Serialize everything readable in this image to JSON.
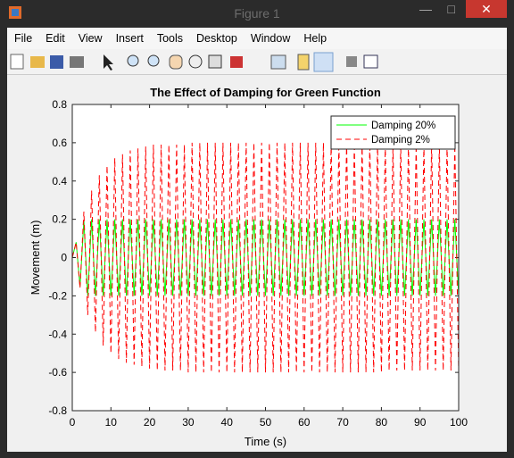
{
  "window": {
    "title": "Figure 1",
    "menu": [
      "File",
      "Edit",
      "View",
      "Insert",
      "Tools",
      "Desktop",
      "Window",
      "Help"
    ]
  },
  "chart_data": {
    "type": "line",
    "title": "The Effect of Damping for Green Function",
    "xlabel": "Time (s)",
    "ylabel": "Movement (m)",
    "xlim": [
      0,
      100
    ],
    "ylim": [
      -0.8,
      0.8
    ],
    "xticks": [
      0,
      10,
      20,
      30,
      40,
      50,
      60,
      70,
      80,
      90,
      100
    ],
    "yticks": [
      -0.8,
      -0.6,
      -0.4,
      -0.2,
      0,
      0.2,
      0.4,
      0.6,
      0.8
    ],
    "legend": "northeast",
    "x": [
      0,
      1,
      2,
      3,
      4,
      5,
      6,
      7,
      8,
      9,
      10,
      11,
      12,
      13,
      14,
      15,
      16,
      17,
      18,
      19,
      20,
      21,
      22,
      23,
      24,
      25,
      26,
      27,
      28,
      29,
      30,
      31,
      32,
      33,
      34,
      35,
      36,
      37,
      38,
      39,
      40,
      41,
      42,
      43,
      44,
      45,
      46,
      47,
      48,
      49,
      50,
      51,
      52,
      53,
      54,
      55,
      56,
      57,
      58,
      59,
      60,
      61,
      62,
      63,
      64,
      65,
      66,
      67,
      68,
      69,
      70,
      71,
      72,
      73,
      74,
      75,
      76,
      77,
      78,
      79,
      80,
      81,
      82,
      83,
      84,
      85,
      86,
      87,
      88,
      89,
      90,
      91,
      92,
      93,
      94,
      95,
      96,
      97,
      98,
      99,
      100
    ],
    "series": [
      {
        "name": "Damping 20%",
        "color": "#00ff00",
        "dash": false,
        "values": [
          0,
          0.08,
          -0.15,
          0.19,
          -0.2,
          0.2,
          -0.2,
          0.2,
          -0.2,
          0.2,
          -0.2,
          0.2,
          -0.2,
          0.2,
          -0.2,
          0.2,
          -0.2,
          0.2,
          -0.2,
          0.2,
          -0.2,
          0.2,
          -0.2,
          0.2,
          -0.2,
          0.2,
          -0.2,
          0.2,
          -0.2,
          0.2,
          -0.2,
          0.2,
          -0.2,
          0.2,
          -0.2,
          0.2,
          -0.2,
          0.2,
          -0.2,
          0.2,
          -0.2,
          0.2,
          -0.2,
          0.2,
          -0.2,
          0.2,
          -0.2,
          0.2,
          -0.2,
          0.2,
          -0.2,
          0.2,
          -0.2,
          0.2,
          -0.2,
          0.2,
          -0.2,
          0.2,
          -0.2,
          0.2,
          -0.2,
          0.2,
          -0.2,
          0.2,
          -0.2,
          0.2,
          -0.2,
          0.2,
          -0.2,
          0.2,
          -0.2,
          0.2,
          -0.2,
          0.2,
          -0.2,
          0.2,
          -0.2,
          0.2,
          -0.2,
          0.2,
          -0.2,
          0.2,
          -0.2,
          0.2,
          -0.2,
          0.2,
          -0.2,
          0.2,
          -0.2,
          0.2,
          -0.2,
          0.2,
          -0.2,
          0.2,
          -0.2,
          0.2,
          -0.2,
          0.2,
          -0.2,
          0.2,
          -0.2
        ]
      },
      {
        "name": "Damping 2%",
        "color": "#ff0000",
        "dash": true,
        "values": [
          0,
          0.08,
          -0.16,
          0.24,
          -0.3,
          0.35,
          -0.39,
          0.43,
          -0.46,
          0.48,
          -0.5,
          0.52,
          -0.53,
          0.54,
          -0.55,
          0.56,
          -0.56,
          0.57,
          -0.57,
          0.58,
          -0.58,
          0.59,
          -0.59,
          0.59,
          -0.59,
          0.59,
          -0.59,
          0.59,
          -0.59,
          0.59,
          -0.6,
          0.6,
          -0.6,
          0.6,
          -0.6,
          0.6,
          -0.6,
          0.6,
          -0.6,
          0.6,
          -0.6,
          0.6,
          -0.6,
          0.6,
          -0.6,
          0.6,
          -0.6,
          0.6,
          -0.6,
          0.6,
          -0.6,
          0.6,
          -0.6,
          0.6,
          -0.6,
          0.6,
          -0.6,
          0.6,
          -0.6,
          0.6,
          -0.6,
          0.6,
          -0.6,
          0.6,
          -0.6,
          0.6,
          -0.6,
          0.6,
          -0.6,
          0.6,
          -0.6,
          0.6,
          -0.6,
          0.6,
          -0.6,
          0.6,
          -0.6,
          0.6,
          -0.6,
          0.6,
          -0.6,
          0.59,
          -0.59,
          0.59,
          -0.59,
          0.59,
          -0.59,
          0.59,
          -0.59,
          0.59,
          -0.59,
          0.59,
          -0.59,
          0.59,
          -0.59,
          0.59,
          -0.59,
          0.59,
          -0.59,
          0.59,
          -0.59
        ]
      }
    ]
  }
}
